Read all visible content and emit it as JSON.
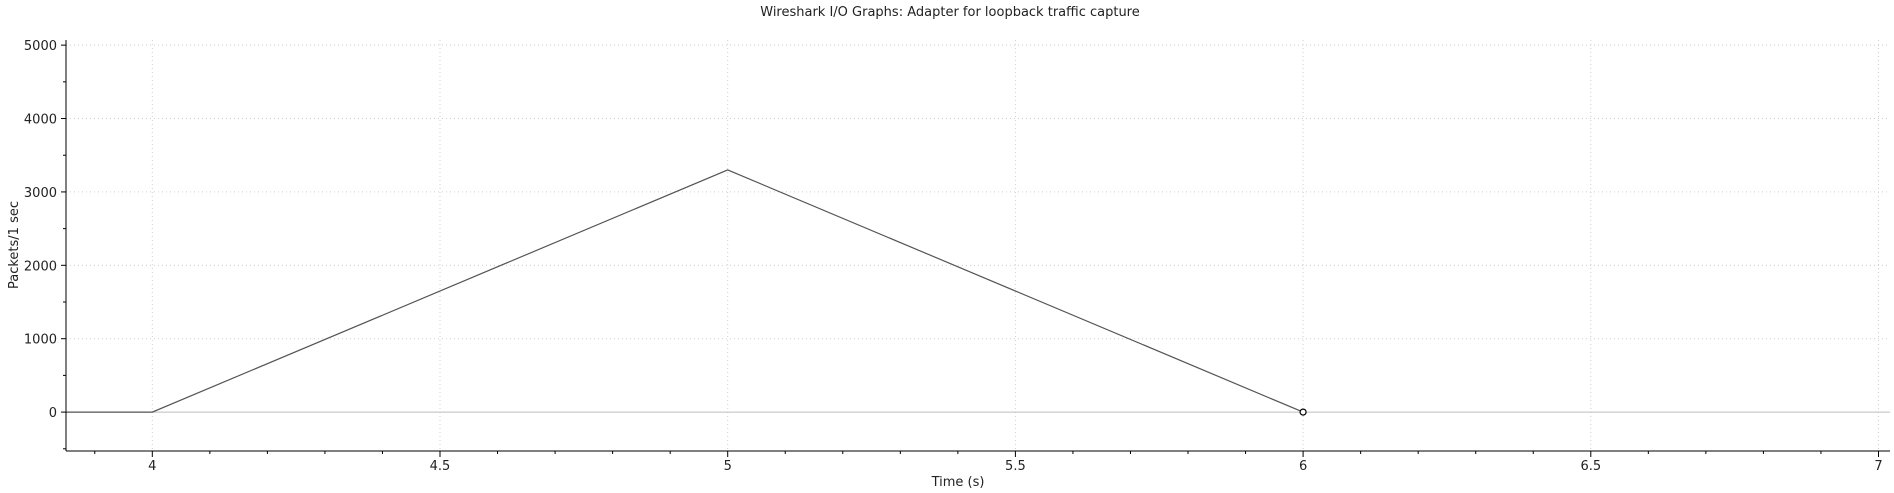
{
  "chart_data": {
    "type": "line",
    "title": "Wireshark I/O Graphs: Adapter for loopback traffic capture",
    "xlabel": "Time (s)",
    "ylabel": "Packets/1 sec",
    "xlim": [
      3.85,
      7.02
    ],
    "ylim": [
      -530,
      5070
    ],
    "x_ticks": [
      4,
      4.5,
      5,
      5.5,
      6,
      6.5,
      7
    ],
    "x_tick_labels": [
      "4",
      "4.5",
      "5",
      "5.5",
      "6",
      "6.5",
      "7"
    ],
    "y_ticks": [
      0,
      1000,
      2000,
      3000,
      4000,
      5000
    ],
    "y_tick_labels": [
      "0",
      "1000",
      "2000",
      "3000",
      "4000",
      "5000"
    ],
    "grid": true,
    "series": [
      {
        "x": [
          3.85,
          4,
          5,
          6
        ],
        "values": [
          0,
          0,
          3300,
          0
        ],
        "color": "#555555",
        "marker_at_last": true
      }
    ]
  }
}
